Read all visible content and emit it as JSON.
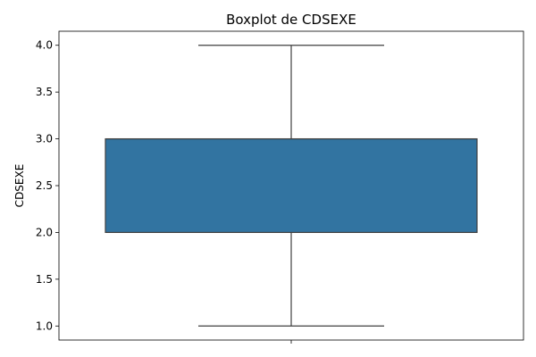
{
  "chart_data": {
    "type": "boxplot",
    "title": "Boxplot de CDSEXE",
    "xlabel": "",
    "ylabel": "CDSEXE",
    "ylim": [
      0.85,
      4.15
    ],
    "yticks": [
      "1.0",
      "1.5",
      "2.0",
      "2.5",
      "3.0",
      "3.5",
      "4.0"
    ],
    "series": [
      {
        "name": "CDSEXE",
        "min": 1.0,
        "q1": 2.0,
        "median": 3.0,
        "q3": 3.0,
        "max": 4.0,
        "color": "#3274a1"
      }
    ],
    "grid": false
  }
}
